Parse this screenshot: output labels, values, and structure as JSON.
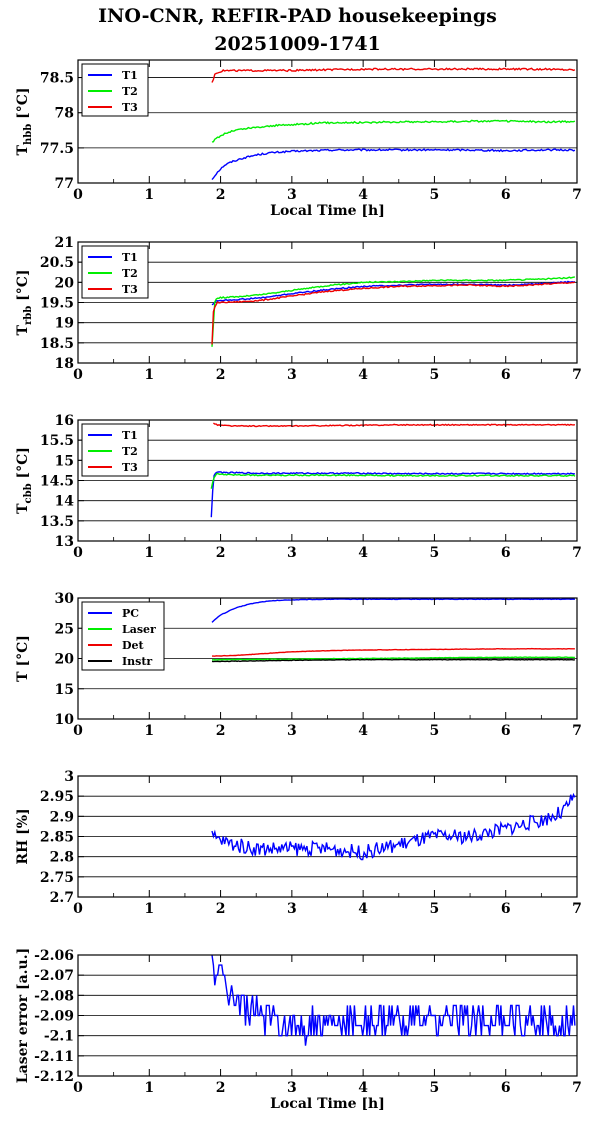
{
  "title_lines": [
    "INO-CNR, REFIR-PAD housekeepings",
    "20251009-1741"
  ],
  "chart_data": [
    {
      "type": "line",
      "ylabel": "T",
      "ylabel_sub": "hbb",
      "ylabel_unit": "[°C]",
      "xlabel": "Local Time [h]",
      "xlim": [
        0,
        7
      ],
      "ylim": [
        77,
        78.75
      ],
      "xticks": [
        "0",
        "1",
        "2",
        "3",
        "4",
        "5",
        "6",
        "7"
      ],
      "yticks": [
        {
          "v": 77,
          "label": "77"
        },
        {
          "v": 77.5,
          "label": "77.5"
        },
        {
          "v": 78,
          "label": "78"
        },
        {
          "v": 78.5,
          "label": "78.5"
        }
      ],
      "grid": "horizontal",
      "legend": "top-left",
      "series": [
        {
          "name": "T1",
          "color": "#0000ff",
          "x": [
            1.88,
            1.95,
            2.05,
            2.15,
            2.3,
            2.5,
            2.7,
            3.0,
            3.3,
            3.6,
            4.0,
            4.5,
            5.0,
            5.5,
            6.0,
            6.5,
            6.97
          ],
          "y": [
            77.05,
            77.15,
            77.25,
            77.3,
            77.35,
            77.4,
            77.43,
            77.45,
            77.46,
            77.47,
            77.47,
            77.47,
            77.47,
            77.47,
            77.46,
            77.47,
            77.47
          ],
          "noise": 0.012
        },
        {
          "name": "T2",
          "color": "#00ee00",
          "x": [
            1.88,
            1.95,
            2.05,
            2.2,
            2.4,
            2.6,
            2.8,
            3.0,
            3.3,
            3.6,
            4.0,
            4.5,
            5.0,
            5.5,
            6.0,
            6.5,
            6.97
          ],
          "y": [
            77.58,
            77.64,
            77.7,
            77.75,
            77.78,
            77.8,
            77.82,
            77.83,
            77.85,
            77.86,
            77.86,
            77.87,
            77.87,
            77.88,
            77.88,
            77.87,
            77.87
          ],
          "noise": 0.012
        },
        {
          "name": "T3",
          "color": "#ee0000",
          "x": [
            1.88,
            1.92,
            1.97,
            2.05,
            2.2,
            2.5,
            3.0,
            3.5,
            4.0,
            4.5,
            5.0,
            5.5,
            6.0,
            6.5,
            6.97
          ],
          "y": [
            78.42,
            78.55,
            78.58,
            78.6,
            78.6,
            78.6,
            78.6,
            78.61,
            78.62,
            78.62,
            78.62,
            78.62,
            78.62,
            78.62,
            78.61
          ],
          "noise": 0.012
        }
      ]
    },
    {
      "type": "line",
      "ylabel": "T",
      "ylabel_sub": "rbb",
      "ylabel_unit": "[°C]",
      "xlabel": "",
      "xlim": [
        0,
        7
      ],
      "ylim": [
        18,
        21
      ],
      "xticks": [
        "0",
        "1",
        "2",
        "3",
        "4",
        "5",
        "6",
        "7"
      ],
      "yticks": [
        {
          "v": 18,
          "label": "18"
        },
        {
          "v": 18.5,
          "label": "18.5"
        },
        {
          "v": 19,
          "label": "19"
        },
        {
          "v": 19.5,
          "label": "19.5"
        },
        {
          "v": 20,
          "label": "20"
        },
        {
          "v": 20.5,
          "label": "20.5"
        },
        {
          "v": 21,
          "label": "21"
        }
      ],
      "grid": "horizontal",
      "legend": "top-left",
      "series": [
        {
          "name": "T1",
          "color": "#0000ff",
          "x": [
            1.88,
            1.92,
            1.95,
            2.0,
            2.3,
            2.6,
            3.0,
            3.5,
            4.0,
            4.5,
            5.0,
            5.5,
            6.0,
            6.5,
            6.97
          ],
          "y": [
            19.45,
            19.5,
            19.55,
            19.55,
            19.58,
            19.62,
            19.72,
            19.82,
            19.9,
            19.93,
            19.95,
            19.95,
            19.93,
            19.97,
            20.02
          ],
          "noise": 0.015
        },
        {
          "name": "T2",
          "color": "#00ee00",
          "x": [
            1.88,
            1.92,
            1.95,
            2.0,
            2.3,
            2.6,
            3.0,
            3.5,
            4.0,
            4.5,
            5.0,
            5.5,
            6.0,
            6.5,
            6.97
          ],
          "y": [
            18.4,
            19.55,
            19.6,
            19.62,
            19.65,
            19.7,
            19.8,
            19.92,
            20.0,
            20.02,
            20.05,
            20.05,
            20.05,
            20.08,
            20.12
          ],
          "noise": 0.015
        },
        {
          "name": "T3",
          "color": "#ee0000",
          "x": [
            1.88,
            1.9,
            1.95,
            2.0,
            2.3,
            2.6,
            3.0,
            3.5,
            4.0,
            4.5,
            5.0,
            5.5,
            6.0,
            6.5,
            6.97
          ],
          "y": [
            18.45,
            19.3,
            19.5,
            19.5,
            19.52,
            19.56,
            19.66,
            19.78,
            19.85,
            19.9,
            19.92,
            19.93,
            19.9,
            19.95,
            20.0
          ],
          "noise": 0.015
        }
      ]
    },
    {
      "type": "line",
      "ylabel": "T",
      "ylabel_sub": "cbb",
      "ylabel_unit": "[°C]",
      "xlabel": "",
      "xlim": [
        0,
        7
      ],
      "ylim": [
        13,
        16
      ],
      "xticks": [
        "0",
        "1",
        "2",
        "3",
        "4",
        "5",
        "6",
        "7"
      ],
      "yticks": [
        {
          "v": 13,
          "label": "13"
        },
        {
          "v": 13.5,
          "label": "13.5"
        },
        {
          "v": 14,
          "label": "14"
        },
        {
          "v": 14.5,
          "label": "14.5"
        },
        {
          "v": 15,
          "label": "15"
        },
        {
          "v": 15.5,
          "label": "15.5"
        },
        {
          "v": 16,
          "label": "16"
        }
      ],
      "grid": "horizontal",
      "legend": "top-left",
      "series": [
        {
          "name": "T1",
          "color": "#0000ff",
          "x": [
            1.87,
            1.9,
            1.95,
            2.0,
            2.5,
            3.0,
            3.5,
            4.0,
            4.5,
            5.0,
            5.5,
            6.0,
            6.5,
            6.97
          ],
          "y": [
            13.6,
            14.6,
            14.72,
            14.7,
            14.68,
            14.68,
            14.68,
            14.68,
            14.67,
            14.67,
            14.67,
            14.67,
            14.67,
            14.67
          ],
          "noise": 0.015
        },
        {
          "name": "T2",
          "color": "#00ee00",
          "x": [
            1.87,
            1.9,
            1.95,
            2.0,
            2.5,
            3.0,
            3.5,
            4.0,
            4.5,
            5.0,
            5.5,
            6.0,
            6.5,
            6.97
          ],
          "y": [
            14.3,
            14.55,
            14.68,
            14.65,
            14.63,
            14.63,
            14.63,
            14.63,
            14.62,
            14.62,
            14.62,
            14.62,
            14.62,
            14.62
          ],
          "noise": 0.015
        },
        {
          "name": "T3",
          "color": "#ee0000",
          "x": [
            1.9,
            1.95,
            2.0,
            2.2,
            2.5,
            3.0,
            3.5,
            4.0,
            4.5,
            5.0,
            5.5,
            6.0,
            6.5,
            6.97
          ],
          "y": [
            15.92,
            15.88,
            15.87,
            15.85,
            15.85,
            15.85,
            15.86,
            15.87,
            15.88,
            15.88,
            15.88,
            15.88,
            15.88,
            15.88
          ],
          "noise": 0.012
        }
      ]
    },
    {
      "type": "line",
      "ylabel": "T [°C]",
      "xlabel": "",
      "xlim": [
        0,
        7
      ],
      "ylim": [
        10,
        30
      ],
      "xticks": [
        "0",
        "1",
        "2",
        "3",
        "4",
        "5",
        "6",
        "7"
      ],
      "yticks": [
        {
          "v": 10,
          "label": "10"
        },
        {
          "v": 15,
          "label": "15"
        },
        {
          "v": 20,
          "label": "20"
        },
        {
          "v": 25,
          "label": "25"
        },
        {
          "v": 30,
          "label": "30"
        }
      ],
      "grid": "horizontal",
      "legend": "top-left",
      "series": [
        {
          "name": "PC",
          "color": "#0000ff",
          "x": [
            1.88,
            2.0,
            2.2,
            2.4,
            2.6,
            2.8,
            3.0,
            3.5,
            4.0,
            5.0,
            6.0,
            6.97
          ],
          "y": [
            26.0,
            27.2,
            28.3,
            29.0,
            29.4,
            29.6,
            29.7,
            29.8,
            29.8,
            29.8,
            29.8,
            29.8
          ],
          "noise": 0.04
        },
        {
          "name": "Laser",
          "color": "#00ee00",
          "x": [
            1.88,
            2.5,
            3.0,
            4.0,
            5.0,
            6.0,
            6.97
          ],
          "y": [
            19.8,
            19.85,
            19.9,
            20.0,
            20.1,
            20.2,
            20.2
          ],
          "noise": 0.04
        },
        {
          "name": "Det",
          "color": "#ee0000",
          "x": [
            1.88,
            2.2,
            2.6,
            3.0,
            3.5,
            4.0,
            5.0,
            6.0,
            6.97
          ],
          "y": [
            20.4,
            20.5,
            20.8,
            21.1,
            21.3,
            21.4,
            21.5,
            21.6,
            21.6
          ],
          "noise": 0.03
        },
        {
          "name": "Instr",
          "color": "#000000",
          "x": [
            1.88,
            2.5,
            3.0,
            4.0,
            5.0,
            6.0,
            6.97
          ],
          "y": [
            19.5,
            19.6,
            19.7,
            19.8,
            19.8,
            19.8,
            19.8
          ],
          "noise": 0.04
        }
      ]
    },
    {
      "type": "line",
      "ylabel": "RH [%]",
      "xlabel": "",
      "xlim": [
        0,
        7
      ],
      "ylim": [
        2.7,
        3.0
      ],
      "xticks": [
        "0",
        "1",
        "2",
        "3",
        "4",
        "5",
        "6",
        "7"
      ],
      "yticks": [
        {
          "v": 2.7,
          "label": "2.7"
        },
        {
          "v": 2.75,
          "label": "2.75"
        },
        {
          "v": 2.8,
          "label": "2.8"
        },
        {
          "v": 2.85,
          "label": "2.85"
        },
        {
          "v": 2.9,
          "label": "2.9"
        },
        {
          "v": 2.95,
          "label": "2.95"
        },
        {
          "v": 3.0,
          "label": "3"
        }
      ],
      "grid": "horizontal",
      "legend": "none",
      "series": [
        {
          "name": "",
          "color": "#0000ff",
          "x": [
            1.88,
            2.0,
            2.2,
            2.5,
            3.0,
            3.5,
            4.0,
            4.5,
            5.0,
            5.5,
            6.0,
            6.5,
            6.8,
            6.97
          ],
          "y": [
            2.85,
            2.84,
            2.83,
            2.82,
            2.82,
            2.82,
            2.81,
            2.83,
            2.85,
            2.85,
            2.87,
            2.89,
            2.91,
            2.95
          ],
          "noise": 0.018
        }
      ]
    },
    {
      "type": "line",
      "ylabel": "Laser error [a.u.]",
      "xlabel": "Local Time [h]",
      "xlim": [
        0,
        7
      ],
      "ylim": [
        -2.12,
        -2.06
      ],
      "xticks": [
        "0",
        "1",
        "2",
        "3",
        "4",
        "5",
        "6",
        "7"
      ],
      "yticks": [
        {
          "v": -2.12,
          "label": "-2.12"
        },
        {
          "v": -2.11,
          "label": "-2.11"
        },
        {
          "v": -2.1,
          "label": "-2.1"
        },
        {
          "v": -2.09,
          "label": "-2.09"
        },
        {
          "v": -2.08,
          "label": "-2.08"
        },
        {
          "v": -2.07,
          "label": "-2.07"
        },
        {
          "v": -2.06,
          "label": "-2.06"
        }
      ],
      "grid": "horizontal",
      "legend": "none",
      "series": [
        {
          "name": "",
          "color": "#0000ff",
          "x": [
            1.88,
            2.0,
            2.2,
            2.5,
            3.0,
            3.5,
            4.0,
            5.0,
            6.0,
            6.97
          ],
          "y": [
            -2.065,
            -2.07,
            -2.082,
            -2.09,
            -2.095,
            -2.095,
            -2.093,
            -2.092,
            -2.092,
            -2.093
          ],
          "noise": 0.0,
          "quantized": 0.005
        }
      ]
    }
  ]
}
